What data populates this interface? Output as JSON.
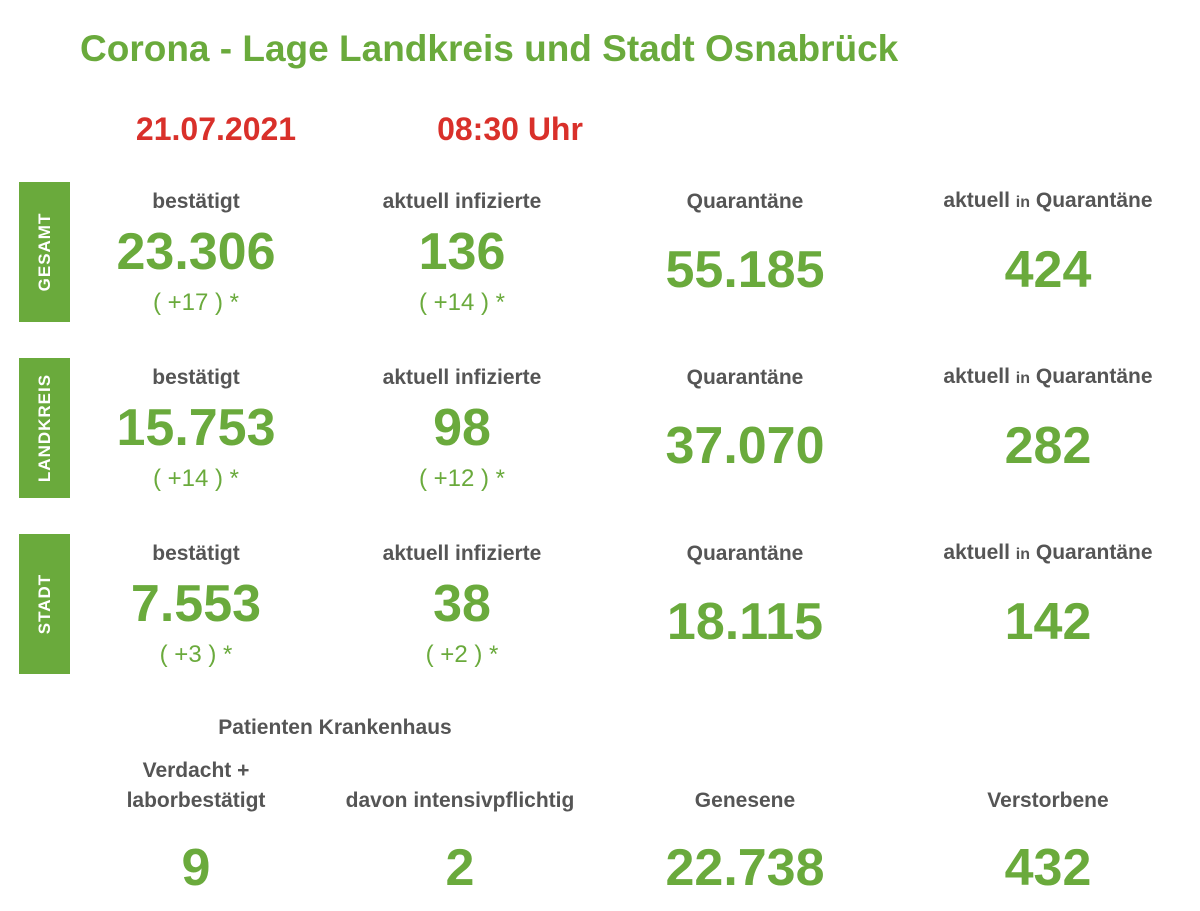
{
  "title": "Corona - Lage Landkreis und Stadt Osnabrück",
  "date": "21.07.2021",
  "time": "08:30 Uhr",
  "labels": {
    "confirmed": "bestätigt",
    "active": "aktuell infizierte",
    "quarantine": "Quarantäne",
    "current_prefix": "aktuell",
    "current_in": "in",
    "current_suffix": "Quarantäne"
  },
  "rows": [
    {
      "name": "GESAMT",
      "confirmed": "23.306",
      "confirmed_delta": "( +17 ) *",
      "active": "136",
      "active_delta": "( +14 ) *",
      "quarantine": "55.185",
      "current_quarantine": "424"
    },
    {
      "name": "LANDKREIS",
      "confirmed": "15.753",
      "confirmed_delta": "( +14 ) *",
      "active": "98",
      "active_delta": "( +12 ) *",
      "quarantine": "37.070",
      "current_quarantine": "282"
    },
    {
      "name": "STADT",
      "confirmed": "7.553",
      "confirmed_delta": "( +3 ) *",
      "active": "38",
      "active_delta": "( +2 ) *",
      "quarantine": "18.115",
      "current_quarantine": "142"
    }
  ],
  "bottom": {
    "hospital_heading": "Patienten Krankenhaus",
    "suspected_line1": "Verdacht +",
    "suspected_line2": "laborbestätigt",
    "suspected_value": "9",
    "icu_label": "davon intensivpflichtig",
    "icu_value": "2",
    "recovered_label": "Genesene",
    "recovered_value": "22.738",
    "deceased_label": "Verstorbene",
    "deceased_value": "432"
  },
  "colors": {
    "accent": "#6aaa3c",
    "date": "#d9302a",
    "label": "#555555"
  }
}
